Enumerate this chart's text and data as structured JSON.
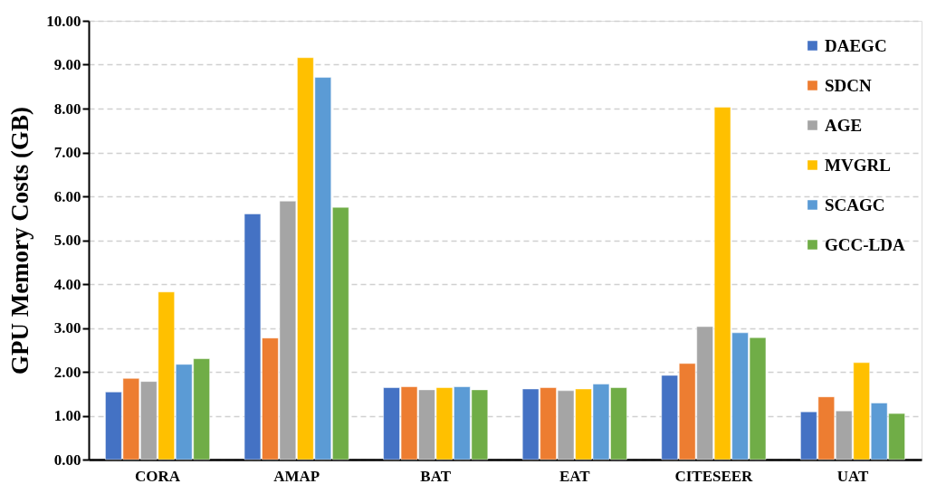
{
  "chart_data": {
    "type": "bar",
    "ylabel": "GPU Memory Costs (GB)",
    "categories": [
      "CORA",
      "AMAP",
      "BAT",
      "EAT",
      "CITESEER",
      "UAT"
    ],
    "series": [
      {
        "name": "DAEGC",
        "color": "#4472c4",
        "values": [
          1.54,
          5.6,
          1.64,
          1.61,
          1.92,
          1.09
        ]
      },
      {
        "name": "SDCN",
        "color": "#ed7d31",
        "values": [
          1.85,
          2.77,
          1.66,
          1.64,
          2.19,
          1.43
        ]
      },
      {
        "name": "AGE",
        "color": "#a5a5a5",
        "values": [
          1.78,
          5.89,
          1.59,
          1.57,
          3.03,
          1.11
        ]
      },
      {
        "name": "MVGRL",
        "color": "#ffc000",
        "values": [
          3.82,
          9.16,
          1.64,
          1.61,
          8.03,
          2.21
        ]
      },
      {
        "name": "SCAGC",
        "color": "#5b9bd5",
        "values": [
          2.17,
          8.71,
          1.66,
          1.72,
          2.89,
          1.29
        ]
      },
      {
        "name": "GCC-LDA",
        "color": "#70ad47",
        "values": [
          2.3,
          5.75,
          1.59,
          1.64,
          2.78,
          1.05
        ]
      }
    ],
    "ylim": [
      0,
      10
    ],
    "yticks": [
      {
        "value": 0,
        "label": "0.00"
      },
      {
        "value": 1,
        "label": "1.00"
      },
      {
        "value": 2,
        "label": "2.00"
      },
      {
        "value": 3,
        "label": "3.00"
      },
      {
        "value": 4,
        "label": "4.00"
      },
      {
        "value": 5,
        "label": "5.00"
      },
      {
        "value": 6,
        "label": "6.00"
      },
      {
        "value": 7,
        "label": "7.00"
      },
      {
        "value": 8,
        "label": "8.00"
      },
      {
        "value": 9,
        "label": "9.00"
      },
      {
        "value": 10,
        "label": "10.00"
      }
    ],
    "grid": "y",
    "legend": "top right"
  }
}
